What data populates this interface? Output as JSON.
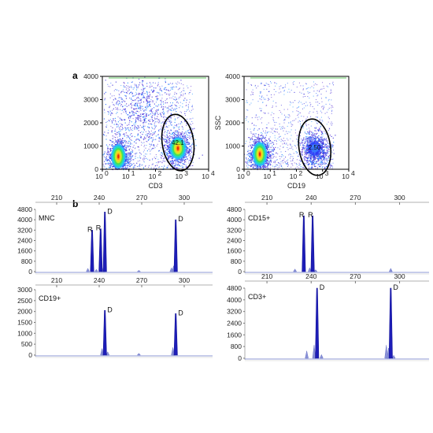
{
  "figure": {
    "panel_a_label": "a",
    "panel_b_label": "b"
  },
  "chart_data": [
    {
      "type": "scatter",
      "panel": "a-left",
      "xlabel": "CD3",
      "ylabel": "",
      "xscale": "log",
      "xlim": [
        1,
        10000
      ],
      "ylim": [
        0,
        4000
      ],
      "xticks": [
        "10",
        "10",
        "10",
        "10",
        "10"
      ],
      "xtick_exponents": [
        "0",
        "1",
        "2",
        "3",
        "4"
      ],
      "yticks": [
        "0",
        "1000",
        "2000",
        "3000",
        "4000"
      ],
      "populations": [
        {
          "center_x": 4,
          "center_y": 550,
          "spread": "dense",
          "note_color": "hot"
        },
        {
          "center_x": 700,
          "center_y": 900,
          "spread": "gated",
          "note_color": "hot"
        },
        {
          "center_x": 30,
          "center_y": 2400,
          "spread": "diffuse",
          "note_color": "cool"
        }
      ],
      "gate": {
        "center_x": 700,
        "center_y": 1150,
        "label": "42.1"
      }
    },
    {
      "type": "scatter",
      "panel": "a-right",
      "xlabel": "CD19",
      "ylabel": "SSC",
      "xscale": "log",
      "xlim": [
        1,
        10000
      ],
      "ylim": [
        0,
        4000
      ],
      "xticks": [
        "10",
        "10",
        "10",
        "10",
        "10"
      ],
      "xtick_exponents": [
        "0",
        "1",
        "2",
        "3",
        "4"
      ],
      "yticks": [
        "0",
        "1000",
        "2000",
        "3000",
        "4000"
      ],
      "populations": [
        {
          "center_x": 4,
          "center_y": 650,
          "spread": "dense",
          "note_color": "hot"
        },
        {
          "center_x": 500,
          "center_y": 900,
          "spread": "gated",
          "note_color": "cool"
        }
      ],
      "gate": {
        "center_x": 500,
        "center_y": 950,
        "label": "2.50"
      }
    },
    {
      "type": "line",
      "panel": "b-MNC",
      "sample_label": "MNC",
      "xlim": [
        195,
        320
      ],
      "ylim": [
        0,
        4800
      ],
      "xticks": [
        "210",
        "240",
        "270",
        "300"
      ],
      "yticks": [
        "0",
        "800",
        "1600",
        "2400",
        "3200",
        "4000",
        "4800"
      ],
      "peaks": [
        {
          "x": 235,
          "height": 3200,
          "label": "R"
        },
        {
          "x": 241,
          "height": 3300,
          "label": "R"
        },
        {
          "x": 244,
          "height": 4600,
          "label": "D"
        },
        {
          "x": 294,
          "height": 4000,
          "label": "D"
        }
      ],
      "minor_peaks": [
        {
          "x": 232,
          "height": 250
        },
        {
          "x": 238,
          "height": 180
        },
        {
          "x": 243,
          "height": 350
        },
        {
          "x": 268,
          "height": 100
        },
        {
          "x": 291,
          "height": 300
        },
        {
          "x": 292.5,
          "height": 450
        }
      ]
    },
    {
      "type": "line",
      "panel": "b-CD15",
      "sample_label": "CD15+",
      "xlim": [
        195,
        320
      ],
      "ylim": [
        0,
        4800
      ],
      "xticks": [
        "210",
        "240",
        "270",
        "300"
      ],
      "yticks": [
        "0",
        "800",
        "1600",
        "2400",
        "3200",
        "4000",
        "4800"
      ],
      "peaks": [
        {
          "x": 235,
          "height": 4300,
          "label": "R"
        },
        {
          "x": 241,
          "height": 4300,
          "label": "R"
        }
      ],
      "minor_peaks": [
        {
          "x": 229,
          "height": 200
        },
        {
          "x": 239,
          "height": 300
        },
        {
          "x": 243,
          "height": 150
        },
        {
          "x": 294,
          "height": 250
        }
      ]
    },
    {
      "type": "line",
      "panel": "b-CD19",
      "sample_label": "CD19+",
      "xlim": [
        195,
        320
      ],
      "ylim": [
        0,
        3000
      ],
      "xticks": [
        "210",
        "240",
        "270",
        "300"
      ],
      "yticks": [
        "0",
        "500",
        "1000",
        "1500",
        "2000",
        "2500",
        "3000"
      ],
      "peaks": [
        {
          "x": 244,
          "height": 2050,
          "label": "D"
        },
        {
          "x": 294,
          "height": 1900,
          "label": "D"
        }
      ],
      "minor_peaks": [
        {
          "x": 242,
          "height": 300
        },
        {
          "x": 246,
          "height": 150
        },
        {
          "x": 292,
          "height": 350
        },
        {
          "x": 268,
          "height": 80
        }
      ]
    },
    {
      "type": "line",
      "panel": "b-CD3",
      "sample_label": "CD3+",
      "xlim": [
        195,
        320
      ],
      "ylim": [
        0,
        4800
      ],
      "xticks": [
        "210",
        "240",
        "270",
        "300"
      ],
      "yticks": [
        "0",
        "800",
        "1600",
        "2400",
        "3200",
        "4000",
        "4800"
      ],
      "peaks": [
        {
          "x": 244,
          "height": 4800,
          "label": "D"
        },
        {
          "x": 294,
          "height": 4800,
          "label": "D"
        }
      ],
      "minor_peaks": [
        {
          "x": 237,
          "height": 500
        },
        {
          "x": 242,
          "height": 900
        },
        {
          "x": 247,
          "height": 250
        },
        {
          "x": 291,
          "height": 900
        },
        {
          "x": 292.5,
          "height": 700
        },
        {
          "x": 296,
          "height": 200
        }
      ]
    }
  ]
}
